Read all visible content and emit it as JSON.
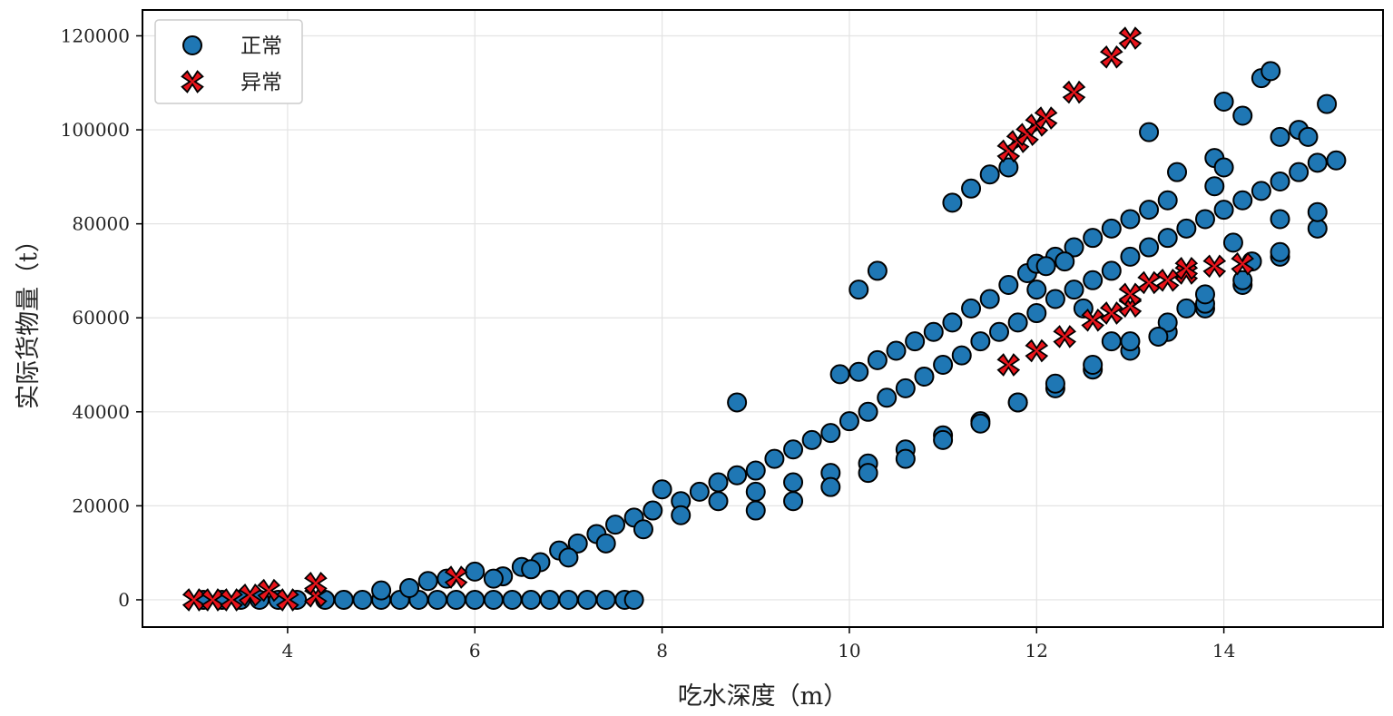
{
  "chart_data": {
    "type": "scatter",
    "xlabel": "吃水深度（m）",
    "ylabel": "实际货物量（t）",
    "xlim": [
      2.45,
      15.7
    ],
    "ylim": [
      -5800,
      125500
    ],
    "xticks": [
      4,
      6,
      8,
      10,
      12,
      14
    ],
    "yticks": [
      0,
      20000,
      40000,
      60000,
      80000,
      100000,
      120000
    ],
    "grid": true,
    "legend_position": "top-left",
    "colors": {
      "normal": "#1f77b4",
      "anomaly": "#e8141b",
      "edge": "#000000"
    },
    "series": [
      {
        "name": "正常",
        "marker": "circle",
        "points": [
          [
            3.1,
            0
          ],
          [
            3.3,
            0
          ],
          [
            3.5,
            0
          ],
          [
            3.7,
            0
          ],
          [
            3.9,
            0
          ],
          [
            4.1,
            0
          ],
          [
            4.4,
            0
          ],
          [
            4.6,
            0
          ],
          [
            4.8,
            0
          ],
          [
            5.0,
            0
          ],
          [
            5.2,
            0
          ],
          [
            5.4,
            0
          ],
          [
            5.6,
            0
          ],
          [
            5.8,
            0
          ],
          [
            6.0,
            0
          ],
          [
            6.2,
            0
          ],
          [
            6.4,
            0
          ],
          [
            6.6,
            0
          ],
          [
            6.8,
            0
          ],
          [
            7.0,
            0
          ],
          [
            7.2,
            0
          ],
          [
            7.4,
            0
          ],
          [
            7.6,
            0
          ],
          [
            7.7,
            0
          ],
          [
            5.0,
            2000
          ],
          [
            5.3,
            2500
          ],
          [
            5.5,
            4000
          ],
          [
            5.7,
            4500
          ],
          [
            6.0,
            6000
          ],
          [
            6.3,
            5000
          ],
          [
            6.5,
            7000
          ],
          [
            6.7,
            8000
          ],
          [
            6.9,
            10500
          ],
          [
            7.1,
            12000
          ],
          [
            7.3,
            14000
          ],
          [
            7.5,
            16000
          ],
          [
            7.7,
            17500
          ],
          [
            7.9,
            19000
          ],
          [
            8.0,
            23500
          ],
          [
            8.2,
            21000
          ],
          [
            8.4,
            23000
          ],
          [
            8.6,
            25000
          ],
          [
            8.8,
            26500
          ],
          [
            9.0,
            27500
          ],
          [
            9.2,
            30000
          ],
          [
            9.4,
            32000
          ],
          [
            9.6,
            34000
          ],
          [
            9.8,
            35500
          ],
          [
            10.0,
            38000
          ],
          [
            10.2,
            40000
          ],
          [
            10.4,
            43000
          ],
          [
            10.6,
            45000
          ],
          [
            10.8,
            47500
          ],
          [
            11.0,
            50000
          ],
          [
            11.2,
            52000
          ],
          [
            11.4,
            55000
          ],
          [
            11.6,
            57000
          ],
          [
            11.8,
            59000
          ],
          [
            12.0,
            61000
          ],
          [
            12.2,
            64000
          ],
          [
            12.4,
            66000
          ],
          [
            12.6,
            68000
          ],
          [
            12.8,
            70000
          ],
          [
            13.0,
            73000
          ],
          [
            13.2,
            75000
          ],
          [
            13.4,
            77000
          ],
          [
            13.6,
            79000
          ],
          [
            13.8,
            81000
          ],
          [
            14.0,
            83000
          ],
          [
            14.2,
            85000
          ],
          [
            14.4,
            87000
          ],
          [
            14.6,
            89000
          ],
          [
            14.8,
            91000
          ],
          [
            15.0,
            93000
          ],
          [
            6.2,
            4500
          ],
          [
            6.6,
            6500
          ],
          [
            7.0,
            9000
          ],
          [
            7.4,
            12000
          ],
          [
            7.8,
            15000
          ],
          [
            8.2,
            18000
          ],
          [
            8.6,
            21000
          ],
          [
            9.0,
            23000
          ],
          [
            9.4,
            25000
          ],
          [
            9.8,
            27000
          ],
          [
            10.2,
            29000
          ],
          [
            10.6,
            32000
          ],
          [
            11.0,
            35000
          ],
          [
            11.4,
            38000
          ],
          [
            11.8,
            42000
          ],
          [
            12.2,
            45000
          ],
          [
            12.6,
            49000
          ],
          [
            13.0,
            53000
          ],
          [
            13.4,
            57000
          ],
          [
            13.8,
            62000
          ],
          [
            14.2,
            67000
          ],
          [
            14.6,
            73000
          ],
          [
            15.0,
            79000
          ],
          [
            8.8,
            42000
          ],
          [
            9.9,
            48000
          ],
          [
            10.1,
            48500
          ],
          [
            10.3,
            51000
          ],
          [
            10.5,
            53000
          ],
          [
            10.7,
            55000
          ],
          [
            10.9,
            57000
          ],
          [
            11.1,
            59000
          ],
          [
            11.3,
            62000
          ],
          [
            11.5,
            64000
          ],
          [
            11.7,
            67000
          ],
          [
            11.9,
            69500
          ],
          [
            12.0,
            71500
          ],
          [
            12.2,
            73000
          ],
          [
            12.4,
            75000
          ],
          [
            12.6,
            77000
          ],
          [
            12.8,
            79000
          ],
          [
            13.0,
            81000
          ],
          [
            13.2,
            83000
          ],
          [
            13.4,
            85000
          ],
          [
            9.0,
            19000
          ],
          [
            9.4,
            21000
          ],
          [
            9.8,
            24000
          ],
          [
            10.2,
            27000
          ],
          [
            10.6,
            30000
          ],
          [
            11.0,
            34000
          ],
          [
            11.4,
            37500
          ],
          [
            11.8,
            42000
          ],
          [
            12.2,
            46000
          ],
          [
            12.6,
            50000
          ],
          [
            13.0,
            55000
          ],
          [
            13.4,
            59000
          ],
          [
            13.8,
            63000
          ],
          [
            14.2,
            68000
          ],
          [
            14.6,
            74000
          ],
          [
            10.1,
            66000
          ],
          [
            10.3,
            70000
          ],
          [
            11.1,
            84500
          ],
          [
            11.3,
            87500
          ],
          [
            11.5,
            90500
          ],
          [
            11.7,
            92000
          ],
          [
            12.0,
            66000
          ],
          [
            12.1,
            71000
          ],
          [
            13.2,
            99500
          ],
          [
            13.5,
            91000
          ],
          [
            13.9,
            94000
          ],
          [
            14.0,
            106000
          ],
          [
            14.2,
            103000
          ],
          [
            14.4,
            111000
          ],
          [
            14.5,
            112500
          ],
          [
            14.6,
            98500
          ],
          [
            14.8,
            100000
          ],
          [
            14.9,
            98500
          ],
          [
            15.1,
            105500
          ],
          [
            15.2,
            93500
          ],
          [
            14.0,
            92000
          ],
          [
            13.8,
            65000
          ],
          [
            12.3,
            72000
          ],
          [
            12.5,
            62000
          ],
          [
            12.8,
            55000
          ],
          [
            13.3,
            56000
          ],
          [
            13.6,
            62000
          ],
          [
            14.1,
            76000
          ],
          [
            14.3,
            72000
          ],
          [
            13.9,
            88000
          ],
          [
            14.6,
            81000
          ],
          [
            15.0,
            82500
          ]
        ]
      },
      {
        "name": "异常",
        "marker": "x",
        "points": [
          [
            3.0,
            0
          ],
          [
            3.2,
            0
          ],
          [
            3.4,
            0
          ],
          [
            3.6,
            1000
          ],
          [
            3.8,
            2000
          ],
          [
            4.0,
            0
          ],
          [
            4.3,
            800
          ],
          [
            4.3,
            3500
          ],
          [
            5.8,
            4800
          ],
          [
            11.7,
            50000
          ],
          [
            12.0,
            53000
          ],
          [
            12.3,
            56000
          ],
          [
            12.6,
            59500
          ],
          [
            12.8,
            61000
          ],
          [
            13.0,
            62500
          ],
          [
            13.0,
            65000
          ],
          [
            13.2,
            67500
          ],
          [
            13.4,
            68000
          ],
          [
            13.6,
            69500
          ],
          [
            13.6,
            70500
          ],
          [
            13.9,
            71000
          ],
          [
            14.2,
            71500
          ],
          [
            11.7,
            95500
          ],
          [
            11.8,
            97500
          ],
          [
            11.9,
            99000
          ],
          [
            12.0,
            101000
          ],
          [
            12.1,
            102500
          ],
          [
            12.4,
            108000
          ],
          [
            12.8,
            115500
          ],
          [
            13.0,
            119500
          ]
        ]
      }
    ]
  }
}
